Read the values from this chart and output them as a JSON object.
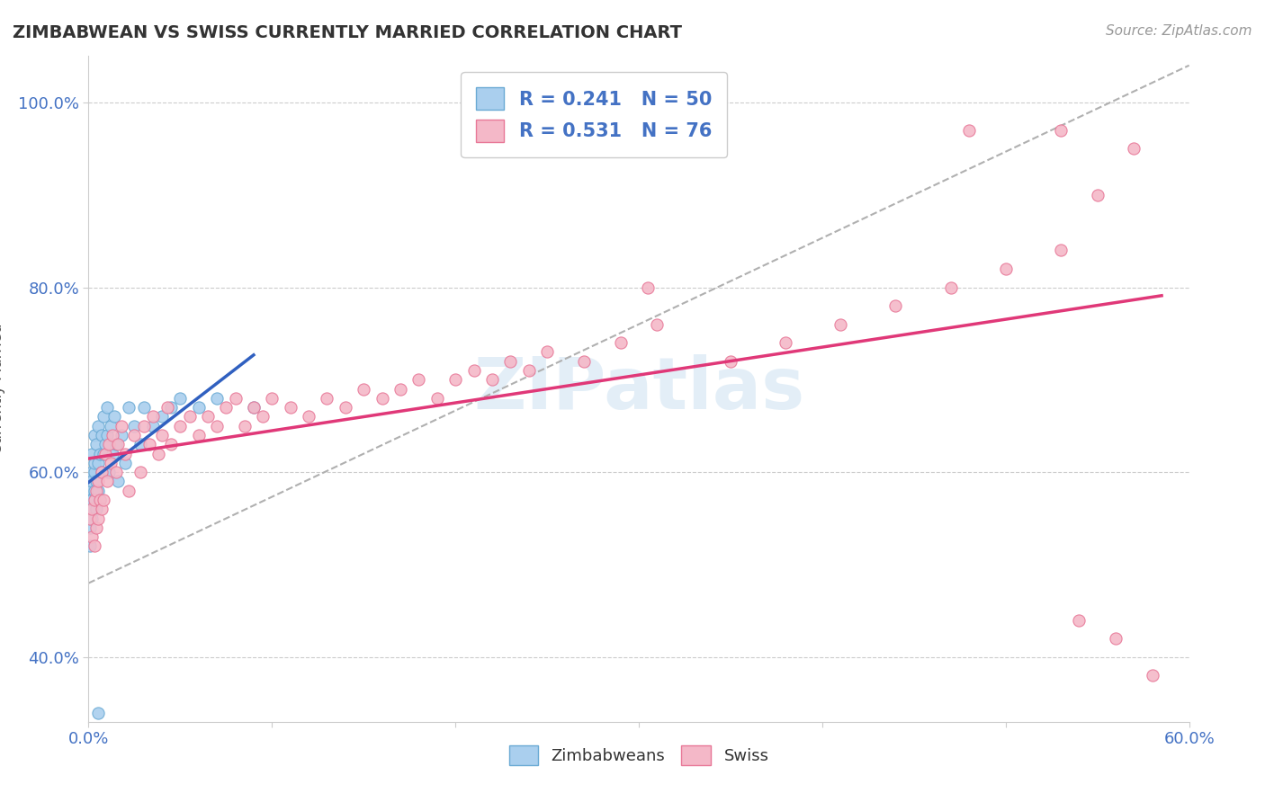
{
  "title": "ZIMBABWEAN VS SWISS CURRENTLY MARRIED CORRELATION CHART",
  "source_text": "Source: ZipAtlas.com",
  "ylabel_label": "Currently Married",
  "xlim": [
    0.0,
    0.6
  ],
  "ylim": [
    0.33,
    1.05
  ],
  "ytick_vals": [
    0.4,
    0.6,
    0.8,
    1.0
  ],
  "ytick_labels": [
    "40.0%",
    "60.0%",
    "80.0%",
    "100.0%"
  ],
  "xtick_vals": [
    0.0,
    0.1,
    0.2,
    0.3,
    0.4,
    0.5,
    0.6
  ],
  "xtick_labels": [
    "0.0%",
    "",
    "",
    "",
    "",
    "",
    "60.0%"
  ],
  "zimbabwe_color": "#aacfee",
  "swiss_color": "#f4b8c8",
  "zimbabwe_edge": "#6aaad4",
  "swiss_edge": "#e87898",
  "trend_blue": "#3060c0",
  "trend_pink": "#e03878",
  "trend_gray": "#b0b0b0",
  "watermark": "ZIPatlas",
  "zim_x": [
    0.001,
    0.001,
    0.001,
    0.001,
    0.001,
    0.001,
    0.002,
    0.002,
    0.002,
    0.002,
    0.002,
    0.003,
    0.003,
    0.003,
    0.003,
    0.004,
    0.004,
    0.004,
    0.005,
    0.005,
    0.005,
    0.006,
    0.006,
    0.007,
    0.007,
    0.008,
    0.008,
    0.009,
    0.01,
    0.01,
    0.011,
    0.012,
    0.013,
    0.014,
    0.015,
    0.016,
    0.018,
    0.02,
    0.022,
    0.025,
    0.028,
    0.03,
    0.035,
    0.04,
    0.045,
    0.05,
    0.06,
    0.07,
    0.09,
    0.005
  ],
  "zim_y": [
    0.55,
    0.58,
    0.52,
    0.57,
    0.54,
    0.56,
    0.6,
    0.57,
    0.55,
    0.62,
    0.59,
    0.64,
    0.6,
    0.58,
    0.61,
    0.63,
    0.59,
    0.56,
    0.65,
    0.61,
    0.58,
    0.62,
    0.57,
    0.64,
    0.6,
    0.66,
    0.62,
    0.63,
    0.67,
    0.64,
    0.6,
    0.65,
    0.62,
    0.66,
    0.63,
    0.59,
    0.64,
    0.61,
    0.67,
    0.65,
    0.63,
    0.67,
    0.65,
    0.66,
    0.67,
    0.68,
    0.67,
    0.68,
    0.67,
    0.34
  ],
  "swiss_x": [
    0.001,
    0.002,
    0.002,
    0.003,
    0.003,
    0.004,
    0.004,
    0.005,
    0.005,
    0.006,
    0.007,
    0.007,
    0.008,
    0.009,
    0.01,
    0.011,
    0.012,
    0.013,
    0.015,
    0.016,
    0.018,
    0.02,
    0.022,
    0.025,
    0.028,
    0.03,
    0.033,
    0.035,
    0.038,
    0.04,
    0.043,
    0.045,
    0.05,
    0.055,
    0.06,
    0.065,
    0.07,
    0.075,
    0.08,
    0.085,
    0.09,
    0.095,
    0.1,
    0.11,
    0.12,
    0.13,
    0.14,
    0.15,
    0.16,
    0.17,
    0.18,
    0.19,
    0.2,
    0.21,
    0.22,
    0.23,
    0.24,
    0.25,
    0.27,
    0.29,
    0.305,
    0.31,
    0.35,
    0.38,
    0.41,
    0.44,
    0.47,
    0.5,
    0.53,
    0.55,
    0.57,
    0.48,
    0.53,
    0.54,
    0.56,
    0.58
  ],
  "swiss_y": [
    0.55,
    0.53,
    0.56,
    0.52,
    0.57,
    0.54,
    0.58,
    0.55,
    0.59,
    0.57,
    0.56,
    0.6,
    0.57,
    0.62,
    0.59,
    0.63,
    0.61,
    0.64,
    0.6,
    0.63,
    0.65,
    0.62,
    0.58,
    0.64,
    0.6,
    0.65,
    0.63,
    0.66,
    0.62,
    0.64,
    0.67,
    0.63,
    0.65,
    0.66,
    0.64,
    0.66,
    0.65,
    0.67,
    0.68,
    0.65,
    0.67,
    0.66,
    0.68,
    0.67,
    0.66,
    0.68,
    0.67,
    0.69,
    0.68,
    0.69,
    0.7,
    0.68,
    0.7,
    0.71,
    0.7,
    0.72,
    0.71,
    0.73,
    0.72,
    0.74,
    0.8,
    0.76,
    0.72,
    0.74,
    0.76,
    0.78,
    0.8,
    0.82,
    0.84,
    0.9,
    0.95,
    0.97,
    0.97,
    0.44,
    0.42,
    0.38
  ]
}
